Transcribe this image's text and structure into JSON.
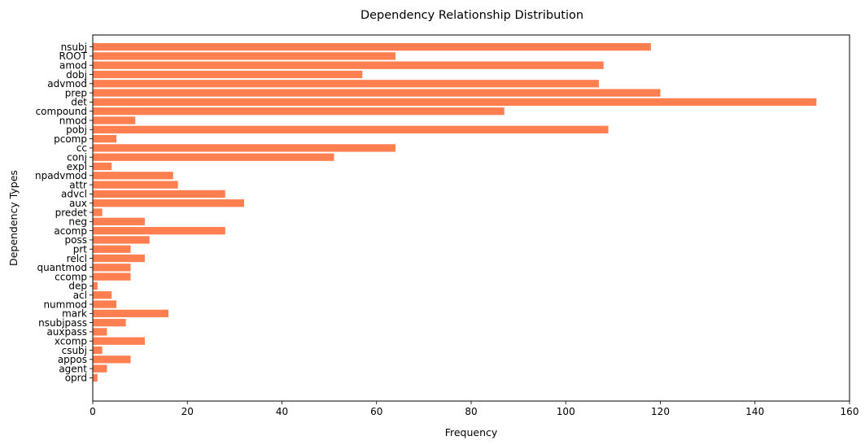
{
  "chart_data": {
    "type": "bar",
    "orientation": "horizontal",
    "title": "Dependency Relationship Distribution",
    "xlabel": "Frequency",
    "ylabel": "Dependency Types",
    "xlim": [
      0,
      160
    ],
    "xticks": [
      0,
      20,
      40,
      60,
      80,
      100,
      120,
      140,
      160
    ],
    "grid": false,
    "bar_color": "#ff7f50",
    "categories": [
      "nsubj",
      "ROOT",
      "amod",
      "dobj",
      "advmod",
      "prep",
      "det",
      "compound",
      "nmod",
      "pobj",
      "pcomp",
      "cc",
      "conj",
      "expl",
      "npadvmod",
      "attr",
      "advcl",
      "aux",
      "predet",
      "neg",
      "acomp",
      "poss",
      "prt",
      "relcl",
      "quantmod",
      "ccomp",
      "dep",
      "acl",
      "nummod",
      "mark",
      "nsubjpass",
      "auxpass",
      "xcomp",
      "csubj",
      "appos",
      "agent",
      "oprd"
    ],
    "values": [
      118,
      64,
      108,
      57,
      107,
      120,
      153,
      87,
      9,
      109,
      5,
      64,
      51,
      4,
      17,
      18,
      28,
      32,
      2,
      11,
      28,
      12,
      8,
      11,
      8,
      8,
      1,
      4,
      5,
      16,
      7,
      3,
      11,
      2,
      8,
      3,
      1
    ]
  }
}
